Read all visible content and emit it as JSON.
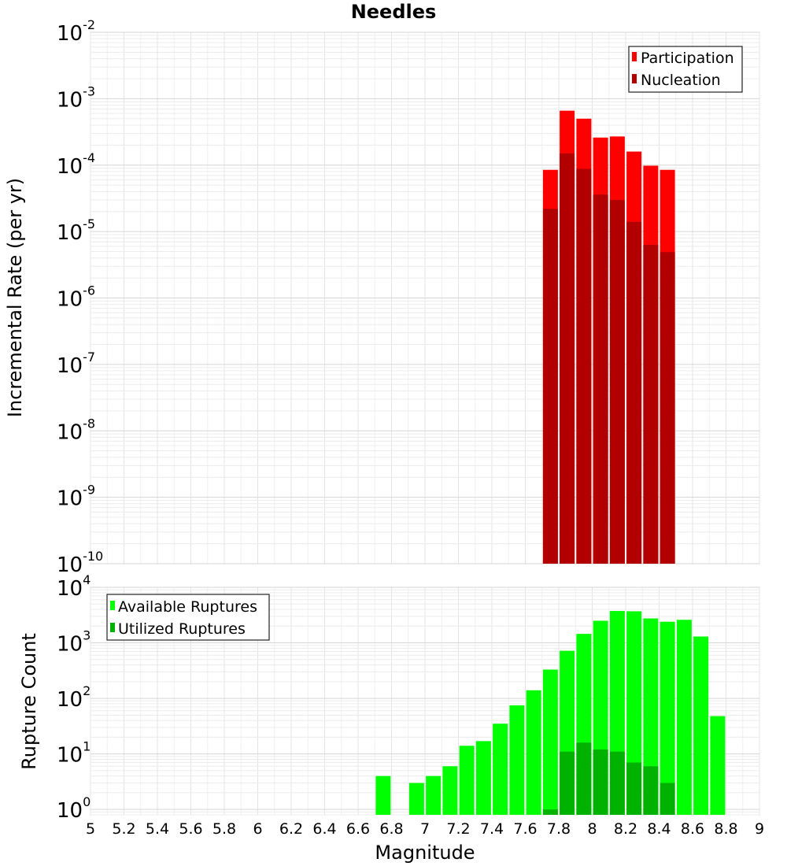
{
  "chart_data": [
    {
      "type": "bar",
      "title": "Needles",
      "xlabel": "",
      "ylabel": "Incremental Rate (per yr)",
      "yscale": "log",
      "xlim": [
        5,
        9
      ],
      "ylim": [
        1e-10,
        0.01
      ],
      "ytick_exponents": [
        -2,
        -3,
        -4,
        -5,
        -6,
        -7,
        -8,
        -9,
        -10
      ],
      "grid": true,
      "legend_position": "top-right",
      "colors": {
        "Participation": "#ff0000",
        "Nucleation": "#b20000"
      },
      "x": [
        7.75,
        7.85,
        7.95,
        8.05,
        8.15,
        8.25,
        8.35,
        8.45
      ],
      "series": [
        {
          "name": "Participation",
          "values": [
            8.5e-05,
            0.00066,
            0.0005,
            0.00026,
            0.00027,
            0.00016,
            9.8e-05,
            8.5e-05
          ]
        },
        {
          "name": "Nucleation",
          "values": [
            2.2e-05,
            0.00015,
            8.8e-05,
            3.6e-05,
            3e-05,
            1.4e-05,
            6.3e-06,
            4.9e-06
          ]
        }
      ]
    },
    {
      "type": "bar",
      "title": "",
      "xlabel": "Magnitude",
      "ylabel": "Rupture Count",
      "yscale": "log",
      "xlim": [
        5,
        9
      ],
      "ylim": [
        0.8,
        10000
      ],
      "ytick_exponents": [
        4,
        3,
        2,
        1,
        0
      ],
      "xticks": [
        "5",
        "5.2",
        "5.4",
        "5.6",
        "5.8",
        "6",
        "6.2",
        "6.4",
        "6.6",
        "6.8",
        "7",
        "7.2",
        "7.4",
        "7.6",
        "7.8",
        "8",
        "8.2",
        "8.4",
        "8.6",
        "8.8",
        "9"
      ],
      "grid": true,
      "legend_position": "top-left",
      "colors": {
        "Available Ruptures": "#00ff00",
        "Utilized Ruptures": "#00b200"
      },
      "series": [
        {
          "name": "Available Ruptures",
          "x": [
            6.75,
            6.95,
            7.05,
            7.15,
            7.25,
            7.35,
            7.45,
            7.55,
            7.65,
            7.75,
            7.85,
            7.95,
            8.05,
            8.15,
            8.25,
            8.35,
            8.45,
            8.55,
            8.65,
            8.75
          ],
          "values": [
            4,
            3,
            4,
            6,
            14,
            17,
            35,
            75,
            140,
            330,
            720,
            1450,
            2500,
            3750,
            3700,
            2750,
            2400,
            2600,
            1300,
            48
          ]
        },
        {
          "name": "Utilized Ruptures",
          "x": [
            7.75,
            7.85,
            7.95,
            8.05,
            8.15,
            8.25,
            8.35,
            8.45
          ],
          "values": [
            1,
            11,
            16,
            12,
            11,
            7,
            6,
            3
          ]
        }
      ]
    }
  ]
}
